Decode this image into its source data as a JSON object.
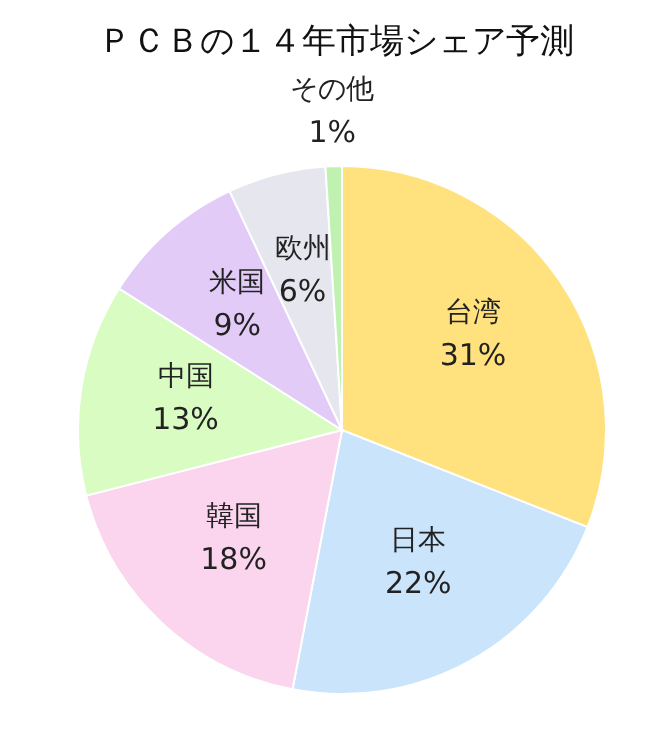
{
  "chart_data": {
    "type": "pie",
    "title": "ＰＣＢの１４年市場シェア予測",
    "categories": [
      "台湾",
      "日本",
      "韓国",
      "中国",
      "米国",
      "欧州",
      "その他"
    ],
    "values": [
      31,
      22,
      18,
      13,
      9,
      6,
      1
    ],
    "value_labels": [
      "31%",
      "22%",
      "18%",
      "13%",
      "9%",
      "6%",
      "1%"
    ],
    "colors": [
      "#ffe27e",
      "#c9e4fb",
      "#fbd5ee",
      "#d9fcc3",
      "#e2cbf7",
      "#e6e6ee",
      "#bff2b0"
    ]
  }
}
